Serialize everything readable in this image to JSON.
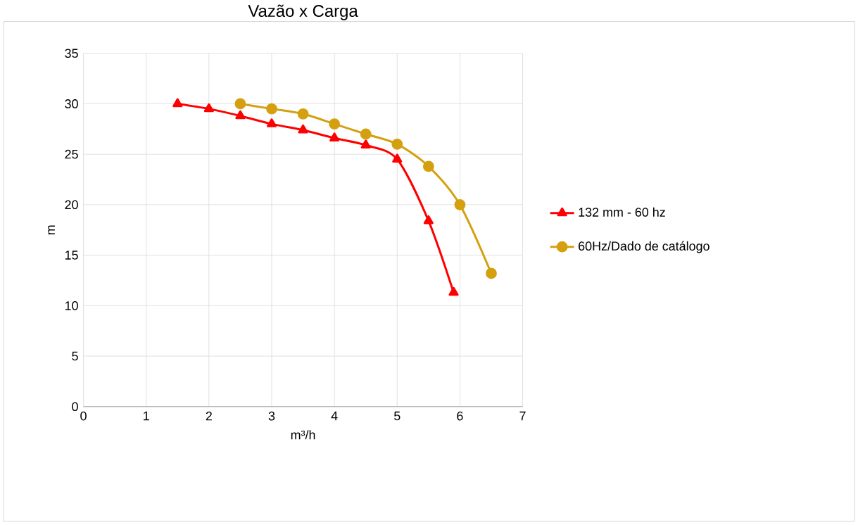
{
  "chart_data": {
    "type": "line",
    "title": "Vazão x Carga",
    "xlabel": "m³/h",
    "ylabel": "m",
    "series": [
      {
        "name": "132 mm - 60 hz",
        "color": "#ff0000",
        "marker": "triangle",
        "x": [
          1.5,
          2,
          2.5,
          3,
          3.5,
          4,
          4.5,
          5,
          5.5,
          5.9
        ],
        "values": [
          30,
          29.5,
          28.8,
          28,
          27.4,
          26.6,
          25.9,
          24.5,
          18.4,
          11.3
        ]
      },
      {
        "name": "60Hz/Dado de catálogo",
        "color": "#d4a010",
        "marker": "circle",
        "x": [
          2.5,
          3,
          3.5,
          4,
          4.5,
          5,
          5.5,
          6,
          6.5
        ],
        "values": [
          30,
          29.5,
          29,
          28,
          27,
          26,
          23.8,
          20,
          13.2
        ]
      }
    ],
    "xlim": [
      0,
      7
    ],
    "xticks": [
      0,
      1,
      2,
      3,
      4,
      5,
      6,
      7
    ],
    "ylim": [
      0,
      35
    ],
    "yticks": [
      0,
      5,
      10,
      15,
      20,
      25,
      30,
      35
    ],
    "grid": true,
    "legend": "right"
  }
}
